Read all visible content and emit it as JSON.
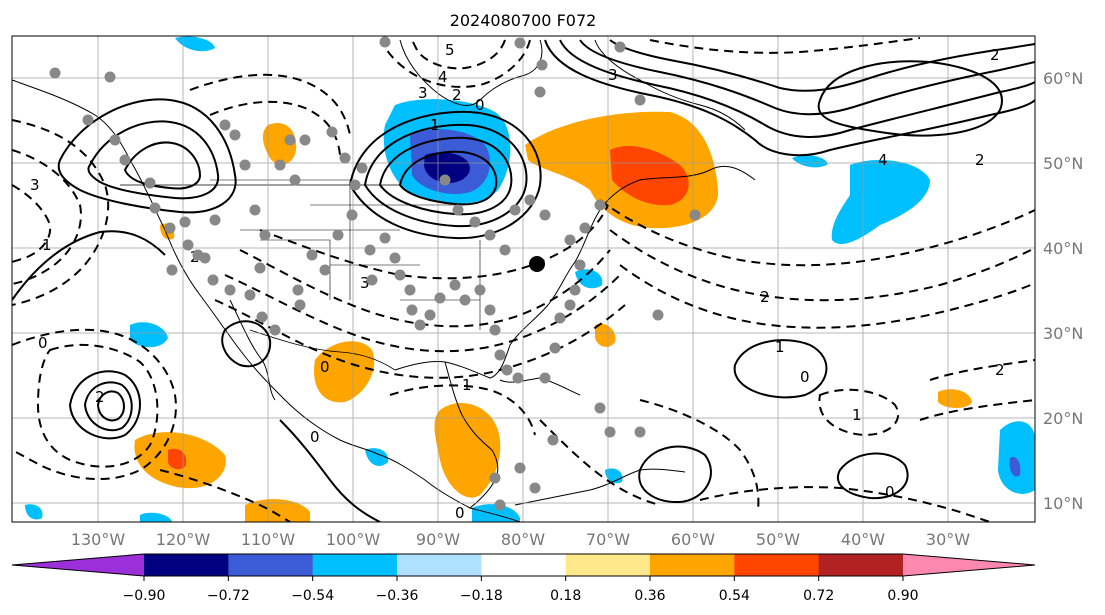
{
  "title": "2024080700 F072",
  "lon_labels": [
    "130°W",
    "120°W",
    "110°W",
    "100°W",
    "90°W",
    "80°W",
    "70°W",
    "60°W",
    "50°W",
    "40°W",
    "30°W"
  ],
  "lat_labels": [
    "60°N",
    "50°N",
    "40°N",
    "30°N",
    "20°N",
    "10°N"
  ],
  "colorbar": {
    "ticks": [
      "−0.90",
      "−0.72",
      "−0.54",
      "−0.36",
      "−0.18",
      "0.18",
      "0.36",
      "0.54",
      "0.72",
      "0.90"
    ],
    "colors": [
      "#9b30d9",
      "#000080",
      "#3c5bd6",
      "#00bfff",
      "#b0e0ff",
      "#ffffff",
      "#ffe98a",
      "#ffa500",
      "#ff4500",
      "#b22222",
      "#ff88b0"
    ]
  },
  "contour_labels": {
    "ne_5": "5",
    "ne_4": "4",
    "ne_3": "3",
    "ne_2": "2",
    "ne_1": "1",
    "ne_0": "0",
    "gl_3": "3",
    "gl_2": "2",
    "gl_4": "4",
    "atl_2a": "2",
    "atl_2b": "2",
    "atl_1": "1",
    "atl_0": "0",
    "pac_2": "2",
    "pac_0": "0",
    "pac_1": "1",
    "pac_3": "3",
    "sw_2": "2",
    "sw_3": "3",
    "sw_0": "0",
    "carib_1": "1",
    "carib_0a": "0",
    "carib_0b": "0",
    "ea_2": "2",
    "ea_1": "1",
    "ea_0": "0"
  }
}
